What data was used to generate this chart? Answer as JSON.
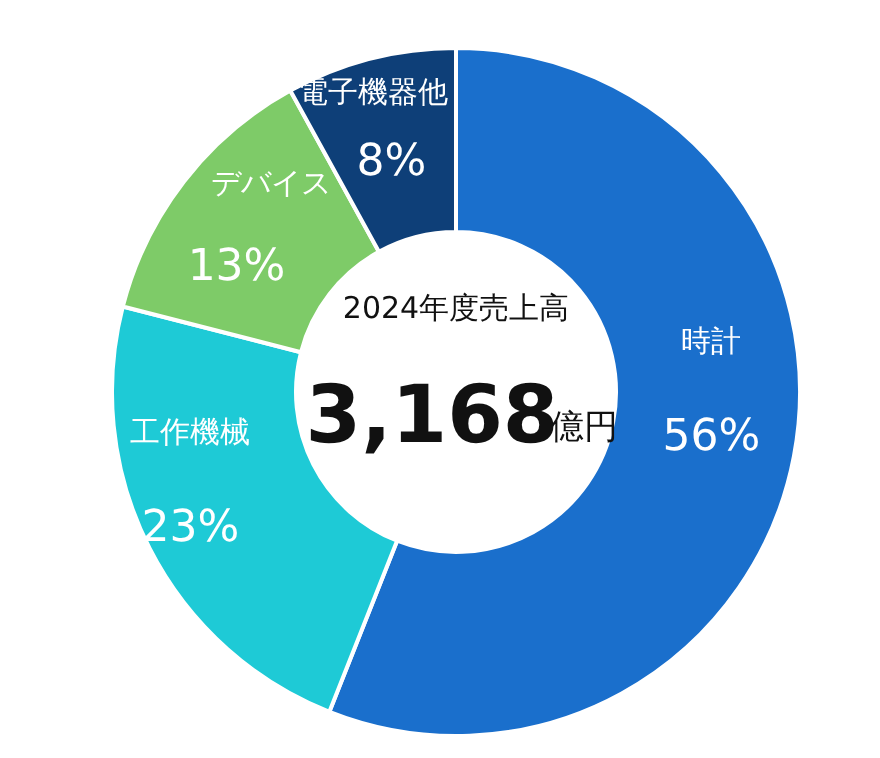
{
  "chart_data": {
    "type": "donut",
    "title": "2024年度売上高",
    "annotations": [
      "3,168",
      "億円"
    ],
    "categories": [
      "時計",
      "工作機械",
      "デバイス",
      "電子機器他"
    ],
    "values": [
      56,
      23,
      13,
      8
    ],
    "colors": [
      "#1a6fcc",
      "#1ecad6",
      "#7ecb68",
      "#0e3f78"
    ],
    "value_labels": [
      "56%",
      "23%",
      "13%",
      "8%"
    ]
  }
}
